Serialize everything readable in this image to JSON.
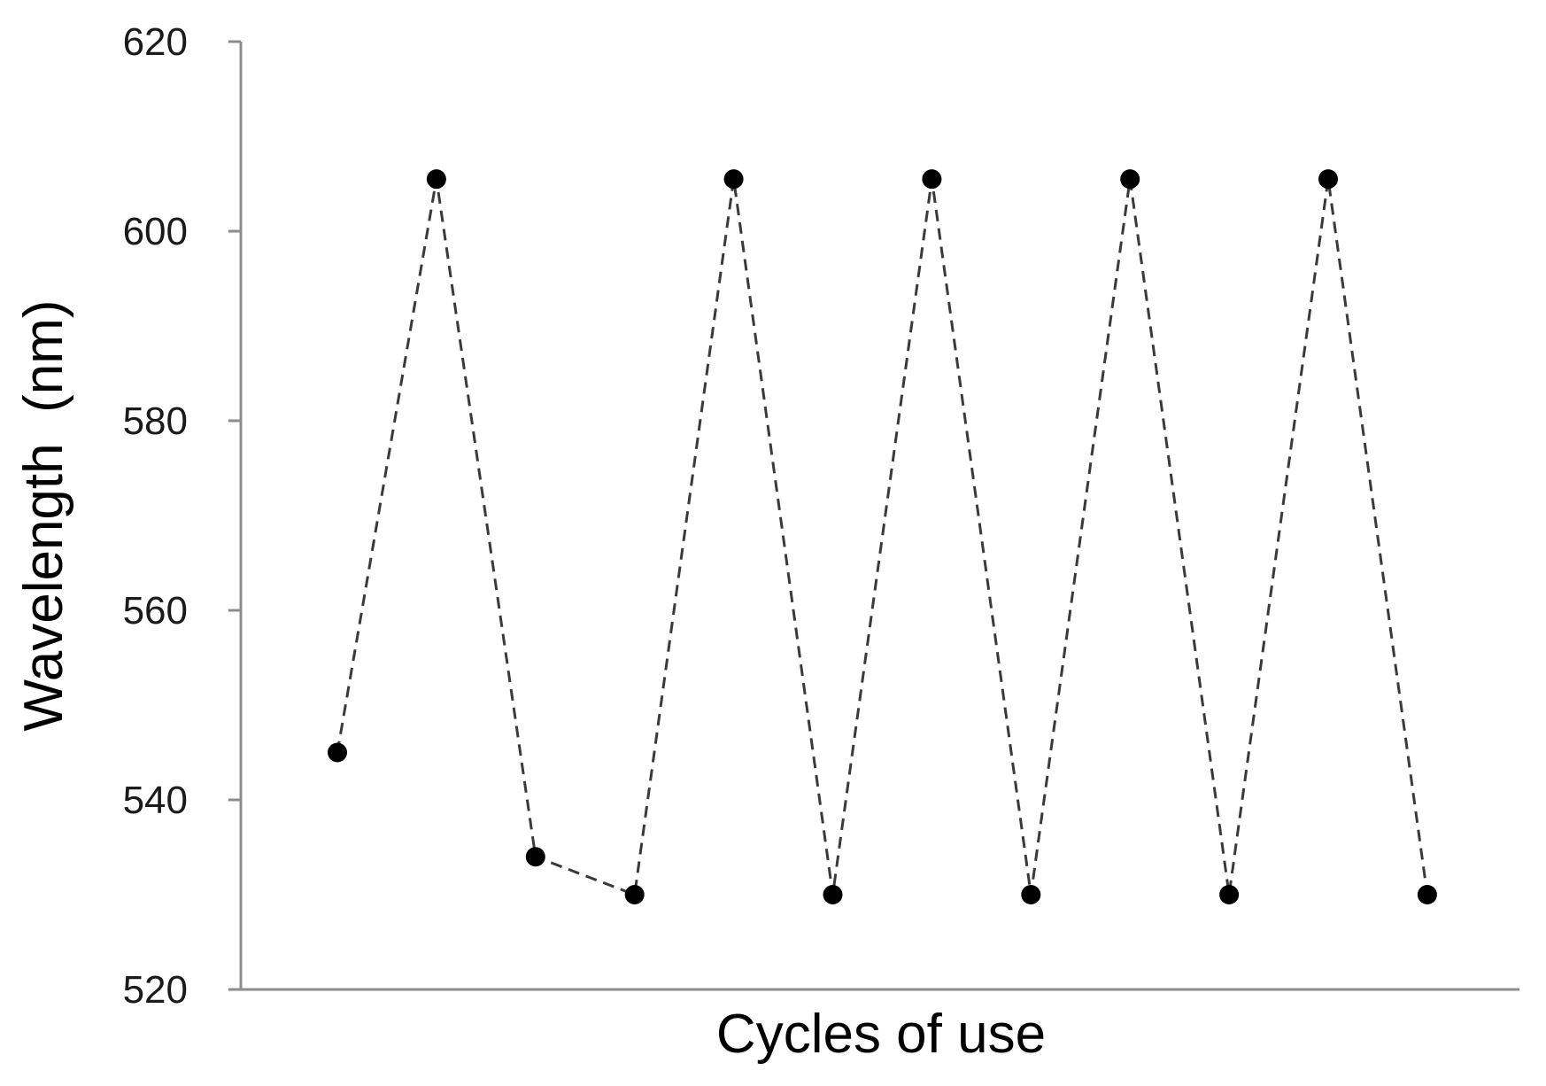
{
  "chart_data": {
    "type": "line",
    "title": "",
    "xlabel": "Cycles of use",
    "ylabel": "Wavelength  (nm)",
    "ylim": [
      520,
      620
    ],
    "yticks": [
      520,
      540,
      560,
      580,
      600,
      620
    ],
    "grid": false,
    "x_ticks_labeled": false,
    "series": [
      {
        "x": [
          1,
          2,
          3,
          4,
          5,
          6,
          7,
          8,
          9,
          10,
          11,
          12
        ],
        "values": [
          545,
          605.5,
          534,
          530,
          605.5,
          530,
          605.5,
          530,
          605.5,
          530,
          605.5,
          530
        ],
        "line_style": "dashed",
        "marker": "circle",
        "color": "#000000"
      }
    ]
  }
}
